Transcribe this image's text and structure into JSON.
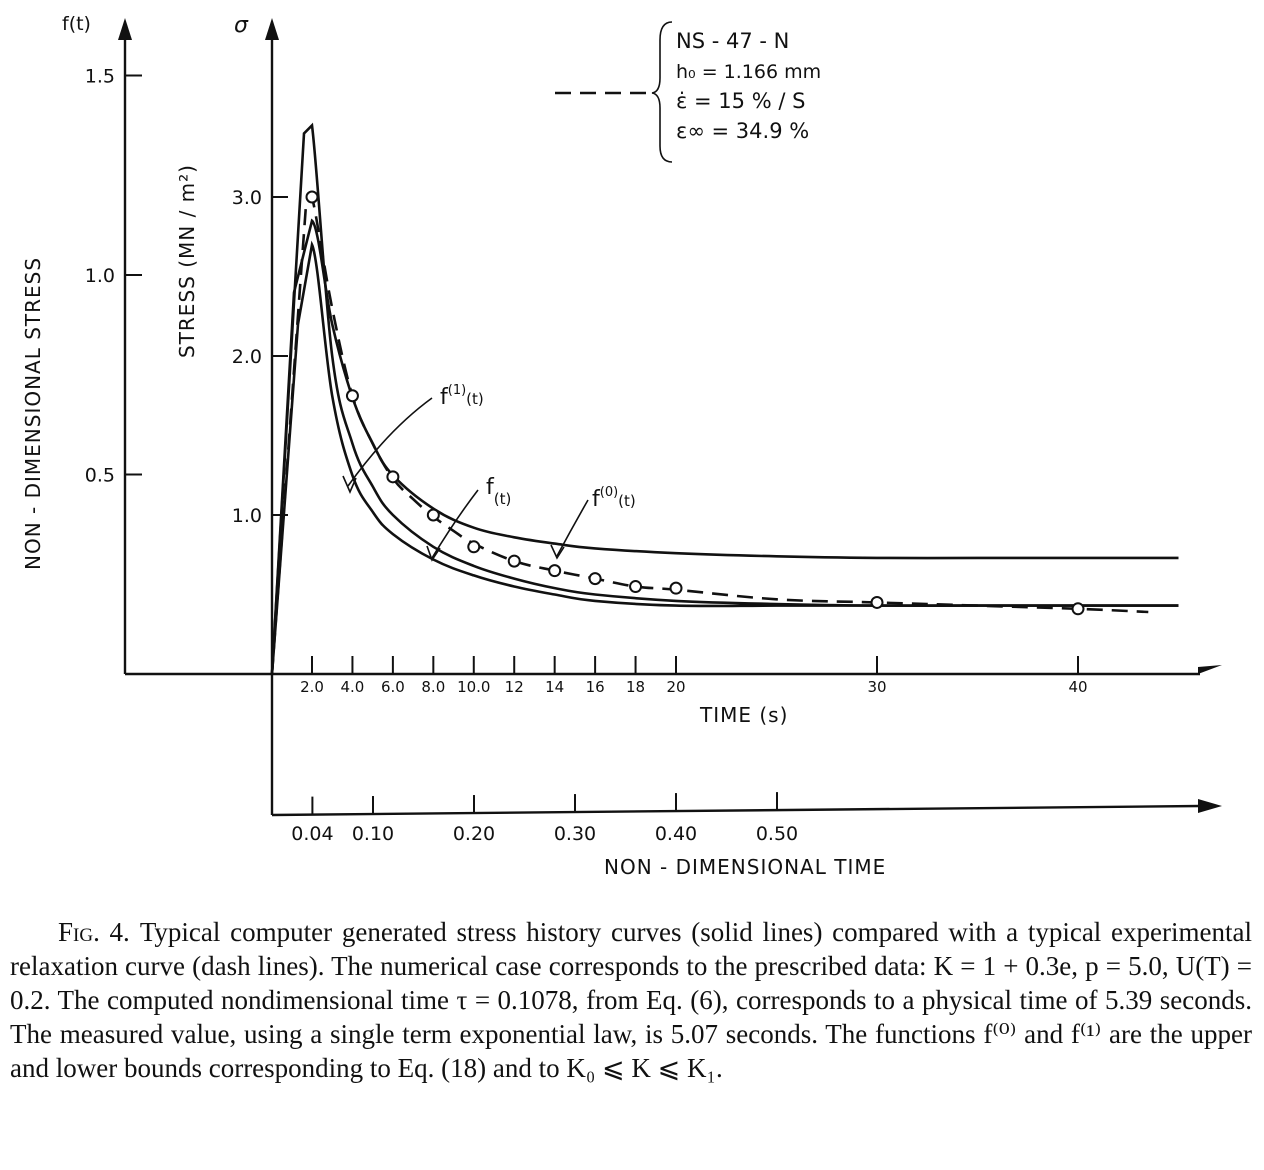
{
  "chart_data": {
    "type": "line",
    "title": "",
    "legend": {
      "lines": [
        "NS - 47 - N",
        "h₀ = 1.166 mm",
        "ε̇ = 15 % / S",
        "ε∞ = 34.9 %"
      ],
      "placement": "top-right"
    },
    "axes": {
      "left_outer": {
        "label": "NON - DIMENSIONAL  STRESS",
        "symbol": "f(t)",
        "ticks": [
          "0.5",
          "1.0",
          "1.5"
        ],
        "tick_values": [
          0.5,
          1.0,
          1.5
        ]
      },
      "left_inner": {
        "label": "STRESS (MN / m²)",
        "symbol": "σ",
        "ticks": [
          "1.0",
          "2.0",
          "3.0"
        ],
        "tick_values": [
          1.0,
          2.0,
          3.0
        ]
      },
      "x_time": {
        "label": "TIME (s)",
        "ticks": [
          "2.0",
          "4.0",
          "6.0",
          "8.0",
          "10.0",
          "12",
          "14",
          "16",
          "18",
          "20",
          "30",
          "40"
        ],
        "tick_values": [
          2,
          4,
          6,
          8,
          10,
          12,
          14,
          16,
          18,
          20,
          30,
          40
        ]
      },
      "x_nondim": {
        "label": "NON - DIMENSIONAL  TIME",
        "ticks": [
          "0.04",
          "0.10",
          "0.20",
          "0.30",
          "0.40",
          "0.50"
        ],
        "tick_values": [
          0.04,
          0.1,
          0.2,
          0.3,
          0.4,
          0.5
        ]
      }
    },
    "series": [
      {
        "name": "f⁽⁰⁾(t)",
        "style": "solid",
        "x": [
          0,
          1.1,
          2.0,
          3.0,
          4.0,
          5.0,
          6.0,
          8.0,
          10,
          12,
          14,
          16,
          20,
          25,
          30,
          35,
          40,
          45
        ],
        "y": [
          0,
          2.4,
          2.85,
          2.2,
          1.74,
          1.45,
          1.25,
          1.04,
          0.92,
          0.86,
          0.82,
          0.79,
          0.76,
          0.74,
          0.73,
          0.73,
          0.73,
          0.73
        ]
      },
      {
        "name": "f⁽¹⁾(t)",
        "style": "solid",
        "x": [
          0,
          1.3,
          2.0,
          3.0,
          4.0,
          5.0,
          6.0,
          8.0,
          10,
          12,
          14,
          16,
          20,
          25,
          30,
          35,
          40,
          45
        ],
        "y": [
          0,
          2.2,
          2.7,
          1.75,
          1.25,
          1.02,
          0.88,
          0.72,
          0.62,
          0.55,
          0.5,
          0.46,
          0.43,
          0.43,
          0.43,
          0.43,
          0.43,
          0.43
        ]
      },
      {
        "name": "f(t)",
        "style": "solid",
        "x": [
          0,
          1.6,
          2.0,
          3.0,
          4.0,
          5.0,
          6.0,
          8.0,
          10,
          12,
          14,
          16,
          20,
          25,
          30,
          35,
          40,
          45
        ],
        "y": [
          0,
          3.4,
          3.45,
          2.0,
          1.45,
          1.18,
          1.0,
          0.8,
          0.68,
          0.6,
          0.54,
          0.5,
          0.46,
          0.44,
          0.43,
          0.43,
          0.43,
          0.43
        ]
      },
      {
        "name": "",
        "style": "dashed",
        "x": [
          0,
          1.7,
          2.0,
          3.0,
          4.0,
          5.0,
          6.0,
          7.0,
          8.0,
          9.0,
          10,
          12,
          14,
          16,
          18,
          20,
          25,
          30,
          35,
          40,
          43.5
        ],
        "y": [
          0,
          2.95,
          3.0,
          2.3,
          1.75,
          1.45,
          1.23,
          1.1,
          0.99,
          0.9,
          0.82,
          0.71,
          0.65,
          0.6,
          0.55,
          0.53,
          0.47,
          0.45,
          0.43,
          0.41,
          0.39
        ]
      }
    ],
    "points": {
      "x": [
        2.0,
        4.0,
        6.0,
        8.0,
        10.0,
        12,
        14,
        16,
        18,
        20,
        30,
        40
      ],
      "y": [
        3.0,
        1.75,
        1.24,
        1.0,
        0.8,
        0.71,
        0.65,
        0.6,
        0.55,
        0.54,
        0.45,
        0.41
      ]
    },
    "curve_labels": [
      {
        "text": "f",
        "sup": "(1)",
        "tail": "(t)"
      },
      {
        "text": "f",
        "sup": "",
        "tail": "(t)"
      },
      {
        "text": "f",
        "sup": "(0)",
        "tail": "(t)"
      }
    ]
  },
  "caption": {
    "label": "Fig. 4.",
    "text": "Typical computer generated stress history curves (solid lines) compared with a typical experimental relaxation curve (dash lines). The numerical case corresponds to the prescribed data: K = 1 + 0.3e, p = 5.0, U(T) = 0.2. The computed nondimensional time τ = 0.1078, from Eq. (6), corresponds to a physical time of 5.39 seconds. The measured value, using a single term exponential law, is 5.07 seconds. The functions f⁽⁰⁾ and f⁽¹⁾ are the upper and lower bounds corresponding to Eq. (18) and to K₀ ⩽ K ⩽ K₁."
  }
}
